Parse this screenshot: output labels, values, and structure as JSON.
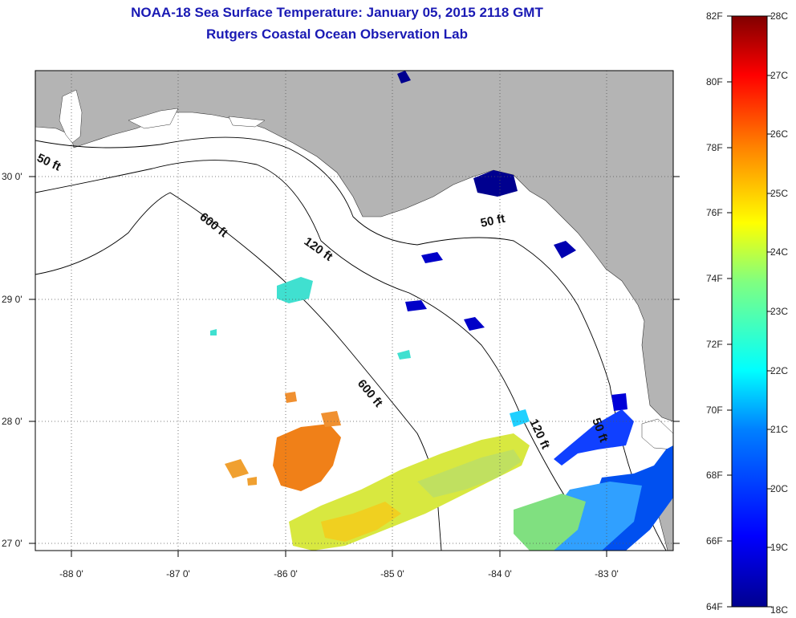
{
  "title": {
    "line1": "NOAA-18 Sea Surface Temperature:  January 05, 2015 2118 GMT",
    "line2": "Rutgers Coastal Ocean Observation Lab"
  },
  "map": {
    "lon_ticks": [
      "-88 0'",
      "-87 0'",
      "-86 0'",
      "-85 0'",
      "-84 0'",
      "-83 0'"
    ],
    "lat_ticks": [
      "30 0'",
      "29 0'",
      "28 0'",
      "27 0'"
    ],
    "contour_labels": [
      {
        "text": "50 ft"
      },
      {
        "text": "600 ft"
      },
      {
        "text": "120 ft"
      },
      {
        "text": "50 ft"
      },
      {
        "text": "600 ft"
      },
      {
        "text": "120 ft"
      },
      {
        "text": "50 ft"
      }
    ]
  },
  "colorbar": {
    "fahrenheit_labels": [
      "82F",
      "80F",
      "78F",
      "76F",
      "74F",
      "72F",
      "70F",
      "68F",
      "66F",
      "64F"
    ],
    "celsius_labels": [
      "28C",
      "27C",
      "26C",
      "25C",
      "24C",
      "23C",
      "22C",
      "21C",
      "20C",
      "19C",
      "18C"
    ]
  },
  "colors": {
    "land": "#b4b4b4",
    "ocean": "#ffffff",
    "title": "#1a1ab4",
    "colormap": [
      "#00008f",
      "#0000ff",
      "#0080ff",
      "#00ffff",
      "#80ff80",
      "#ffff00",
      "#ff8000",
      "#ff0000",
      "#800000"
    ]
  }
}
